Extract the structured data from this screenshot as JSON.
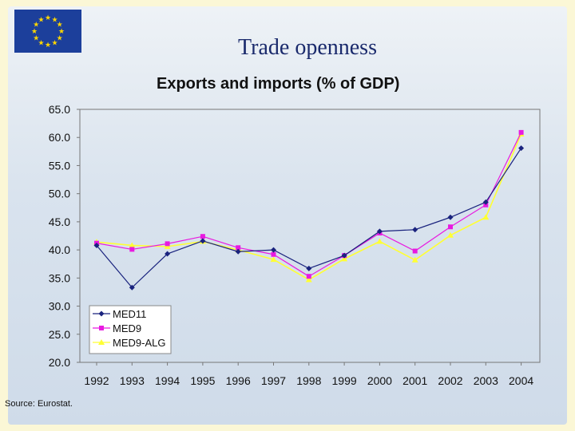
{
  "slide": {
    "title": "Trade openness",
    "source": "Source: Eurostat."
  },
  "icons": {
    "flag": "eu-flag-icon"
  },
  "chart_data": {
    "type": "line",
    "title": "Exports and imports (% of GDP)",
    "xlabel": "",
    "ylabel": "",
    "x": [
      "1992",
      "1993",
      "1994",
      "1995",
      "1996",
      "1997",
      "1998",
      "1999",
      "2000",
      "2001",
      "2002",
      "2003",
      "2004"
    ],
    "yticks": [
      "20.0",
      "25.0",
      "30.0",
      "35.0",
      "40.0",
      "45.0",
      "50.0",
      "55.0",
      "60.0",
      "65.0"
    ],
    "ylim": [
      20,
      65
    ],
    "grid": false,
    "legend_position": "bottom-left",
    "series": [
      {
        "name": "MED11",
        "color": "#1a237e",
        "marker": "diamond",
        "values": [
          40.8,
          33.3,
          39.3,
          41.6,
          39.7,
          40.0,
          36.7,
          39.0,
          43.3,
          43.6,
          45.8,
          48.5,
          58.1
        ]
      },
      {
        "name": "MED9",
        "color": "#e81ae0",
        "marker": "square",
        "values": [
          41.2,
          40.1,
          41.1,
          42.4,
          40.4,
          39.2,
          35.3,
          39.0,
          43.0,
          39.8,
          44.1,
          48.0,
          60.9
        ]
      },
      {
        "name": "MED9-ALG",
        "color": "#ffff33",
        "marker": "triangle",
        "values": [
          41.4,
          40.8,
          40.6,
          41.5,
          40.0,
          38.3,
          34.7,
          38.4,
          41.5,
          38.2,
          42.6,
          45.8,
          60.6
        ]
      }
    ]
  }
}
